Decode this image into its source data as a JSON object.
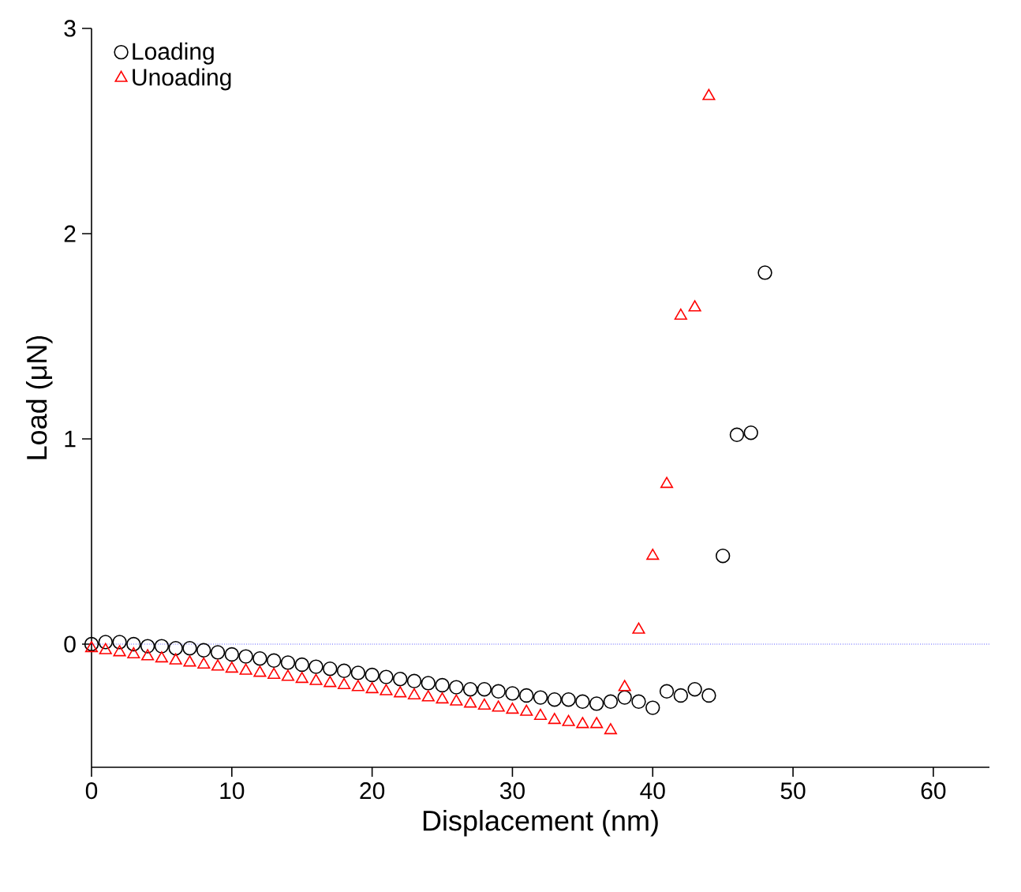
{
  "chart_data": {
    "type": "scatter",
    "xlabel": "Displacement (nm)",
    "ylabel": "Load (μN)",
    "xlim": [
      0,
      64
    ],
    "ylim": [
      -0.6,
      3
    ],
    "xticks": [
      0,
      10,
      20,
      30,
      40,
      50,
      60
    ],
    "yticks": [
      0,
      1,
      2,
      3
    ],
    "legend": "top left",
    "grid": false,
    "ref_lines": [
      {
        "axis": "y",
        "value": 0,
        "color": "#0000ff",
        "line_style": "dotted"
      }
    ],
    "series": [
      {
        "name": "Loading",
        "color": "#000000",
        "marker": "circle",
        "x": [
          0,
          1,
          2,
          3,
          4,
          5,
          6,
          7,
          8,
          9,
          10,
          11,
          12,
          13,
          14,
          15,
          16,
          17,
          18,
          19,
          20,
          21,
          22,
          23,
          24,
          25,
          26,
          27,
          28,
          29,
          30,
          31,
          32,
          33,
          34,
          35,
          36,
          37,
          38,
          39,
          40,
          41,
          42,
          43,
          44,
          45,
          46,
          47,
          48
        ],
        "values": [
          0.0,
          0.01,
          0.01,
          0.0,
          -0.01,
          -0.01,
          -0.02,
          -0.02,
          -0.03,
          -0.04,
          -0.05,
          -0.06,
          -0.07,
          -0.08,
          -0.09,
          -0.1,
          -0.11,
          -0.12,
          -0.13,
          -0.14,
          -0.15,
          -0.16,
          -0.17,
          -0.18,
          -0.19,
          -0.2,
          -0.21,
          -0.22,
          -0.22,
          -0.23,
          -0.24,
          -0.25,
          -0.26,
          -0.27,
          -0.27,
          -0.28,
          -0.29,
          -0.28,
          -0.26,
          -0.28,
          -0.31,
          -0.23,
          -0.25,
          -0.22,
          -0.25,
          0.43,
          1.02,
          1.03,
          1.81
        ]
      },
      {
        "name": "Unoading",
        "color": "#ff0000",
        "marker": "triangle",
        "x": [
          0,
          1,
          2,
          3,
          4,
          5,
          6,
          7,
          8,
          9,
          10,
          11,
          12,
          13,
          14,
          15,
          16,
          17,
          18,
          19,
          20,
          21,
          22,
          23,
          24,
          25,
          26,
          27,
          28,
          29,
          30,
          31,
          32,
          33,
          34,
          35,
          36,
          37,
          38,
          39,
          40,
          41,
          42,
          43,
          44
        ],
        "values": [
          -0.02,
          -0.03,
          -0.04,
          -0.05,
          -0.06,
          -0.07,
          -0.08,
          -0.09,
          -0.1,
          -0.11,
          -0.12,
          -0.13,
          -0.14,
          -0.15,
          -0.16,
          -0.17,
          -0.18,
          -0.19,
          -0.2,
          -0.21,
          -0.22,
          -0.23,
          -0.24,
          -0.25,
          -0.26,
          -0.27,
          -0.28,
          -0.29,
          -0.3,
          -0.31,
          -0.32,
          -0.33,
          -0.35,
          -0.37,
          -0.38,
          -0.39,
          -0.39,
          -0.42,
          -0.21,
          0.07,
          0.43,
          0.78,
          1.6,
          1.64,
          2.67
        ]
      }
    ]
  }
}
